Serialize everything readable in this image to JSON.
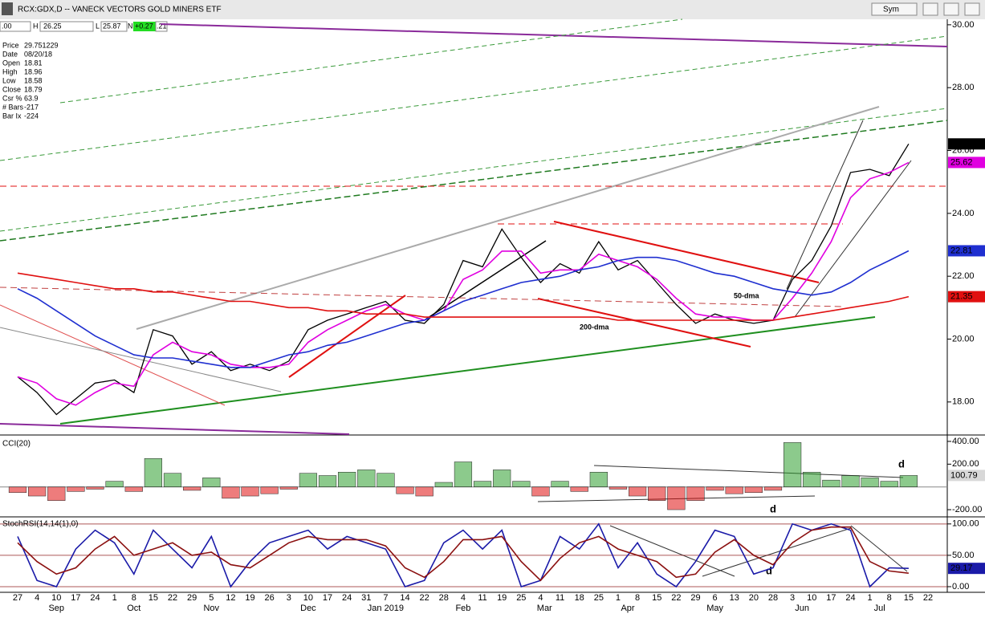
{
  "window": {
    "title": "RCX:GDX,D -- VANECK VECTORS GOLD MINERS ETF",
    "sym_button": "Sym",
    "fields": [
      ".00",
      "H",
      "26.25",
      "L",
      "25.87",
      "N",
      "+0.27",
      ".21"
    ]
  },
  "info": {
    "rows": [
      [
        "Price",
        "29.751229"
      ],
      [
        "Date",
        "08/20/18"
      ],
      [
        "Open",
        "18.81"
      ],
      [
        "High",
        "18.96"
      ],
      [
        "Low",
        "18.58"
      ],
      [
        "Close",
        "18.79"
      ],
      [
        "Csr %",
        "63.9"
      ],
      [
        "# Bars",
        "-217"
      ],
      [
        "Bar Ix",
        "-224"
      ]
    ]
  },
  "annotations": [
    "200-dma",
    "50-dma",
    "d",
    "d",
    "d"
  ],
  "chart_data": [
    {
      "type": "line",
      "ylim": [
        17.0,
        30.15
      ],
      "yticks": [
        {
          "value": 18,
          "label": "18.00"
        },
        {
          "value": 20,
          "label": "20.00"
        },
        {
          "value": 22,
          "label": "22.00"
        },
        {
          "value": 24,
          "label": "24.00"
        },
        {
          "value": 26,
          "label": "26.00"
        },
        {
          "value": 28,
          "label": "28.00"
        },
        {
          "value": 30,
          "label": "30.00"
        }
      ],
      "grid": false,
      "series": [
        {
          "color": "#000000",
          "last_value_tag": true,
          "values": [
            18.8,
            18.3,
            17.6,
            18.1,
            18.6,
            18.7,
            18.3,
            20.3,
            20.1,
            19.2,
            19.6,
            19.0,
            19.2,
            19.0,
            19.3,
            20.3,
            20.6,
            20.8,
            21.0,
            21.2,
            20.6,
            20.5,
            21.1,
            22.5,
            22.3,
            23.5,
            22.6,
            21.8,
            22.4,
            22.1,
            23.1,
            22.2,
            22.5,
            21.8,
            21.1,
            20.5,
            20.8,
            20.6,
            20.5,
            20.6,
            21.9,
            22.5,
            23.6,
            25.3,
            25.4,
            25.2,
            26.21,
            null
          ]
        },
        {
          "color": "#e000e0",
          "last_value_tag": true,
          "values": [
            18.8,
            18.6,
            18.1,
            17.9,
            18.3,
            18.6,
            18.5,
            19.5,
            19.9,
            19.6,
            19.5,
            19.2,
            19.1,
            19.1,
            19.2,
            19.9,
            20.3,
            20.6,
            20.9,
            21.1,
            20.8,
            20.6,
            20.9,
            21.9,
            22.2,
            22.8,
            22.8,
            22.1,
            22.2,
            22.2,
            22.7,
            22.5,
            22.3,
            21.9,
            21.3,
            20.8,
            20.7,
            20.7,
            20.6,
            20.6,
            21.3,
            22.1,
            23.1,
            24.5,
            25.1,
            25.3,
            25.62,
            null
          ]
        },
        {
          "color": "#1f2fd0",
          "last_value_tag": true,
          "values": [
            21.6,
            21.3,
            20.9,
            20.5,
            20.1,
            19.8,
            19.5,
            19.4,
            19.4,
            19.3,
            19.2,
            19.1,
            19.1,
            19.3,
            19.5,
            19.6,
            19.8,
            19.9,
            20.1,
            20.3,
            20.5,
            20.6,
            20.9,
            21.2,
            21.4,
            21.6,
            21.8,
            21.9,
            22.0,
            22.2,
            22.3,
            22.5,
            22.6,
            22.6,
            22.5,
            22.3,
            22.1,
            22.0,
            21.8,
            21.6,
            21.5,
            21.4,
            21.5,
            21.8,
            22.2,
            22.5,
            22.81,
            null
          ]
        },
        {
          "color": "#e01010",
          "last_value_tag": true,
          "values": [
            22.1,
            22.0,
            21.9,
            21.8,
            21.7,
            21.6,
            21.6,
            21.5,
            21.5,
            21.4,
            21.3,
            21.2,
            21.2,
            21.1,
            21.0,
            21.0,
            20.9,
            20.9,
            20.8,
            20.8,
            20.8,
            20.7,
            20.7,
            20.7,
            20.7,
            20.7,
            20.7,
            20.7,
            20.7,
            20.7,
            20.7,
            20.6,
            20.6,
            20.6,
            20.6,
            20.6,
            20.6,
            20.6,
            20.6,
            20.6,
            20.7,
            20.8,
            20.9,
            21.0,
            21.1,
            21.2,
            21.35,
            null
          ]
        }
      ]
    },
    {
      "type": "bar",
      "title": "CCI(20)",
      "ylim": [
        -249,
        435
      ],
      "yticks": [
        {
          "value": -200,
          "label": "-200.00"
        },
        {
          "value": 200,
          "label": "200.00"
        },
        {
          "value": 400,
          "label": "400.00"
        }
      ],
      "up_color": "#2e9e2e",
      "down_color": "#e01010",
      "tag_color": "#d8d8d8",
      "values": [
        -50,
        -80,
        -120,
        -40,
        -20,
        50,
        -40,
        250,
        120,
        -30,
        80,
        -100,
        -80,
        -60,
        -20,
        120,
        100,
        130,
        150,
        120,
        -60,
        -80,
        40,
        220,
        50,
        150,
        50,
        -80,
        50,
        -40,
        130,
        -20,
        -80,
        -120,
        -200,
        -120,
        -30,
        -60,
        -50,
        -30,
        390,
        130,
        60,
        100,
        80,
        50,
        100.79,
        null
      ]
    },
    {
      "type": "line",
      "title": "StochRSI(14,14(1),0)",
      "ylim": [
        -7.7,
        110
      ],
      "yticks": [
        {
          "value": 0,
          "label": "0.00"
        },
        {
          "value": 50,
          "label": "50.00"
        },
        {
          "value": 100,
          "label": "100.00"
        }
      ],
      "grid": true,
      "categories": [
        "27",
        "4",
        "10",
        "17",
        "24",
        "1",
        "8",
        "15",
        "22",
        "29",
        "5",
        "12",
        "19",
        "26",
        "3",
        "10",
        "17",
        "24",
        "31",
        "7",
        "14",
        "22",
        "28",
        "4",
        "11",
        "19",
        "25",
        "4",
        "11",
        "18",
        "25",
        "1",
        "8",
        "15",
        "22",
        "29",
        "6",
        "13",
        "20",
        "28",
        "3",
        "10",
        "17",
        "24",
        "1",
        "8",
        "15",
        "22"
      ],
      "month_labels": [
        "Sep",
        "Oct",
        "Nov",
        "Dec",
        "Jan 2019",
        "Feb",
        "Mar",
        "Apr",
        "May",
        "Jun",
        "Jul"
      ],
      "series": [
        {
          "color": "#1a1aa8",
          "last_value_tag": true,
          "values": [
            80,
            10,
            0,
            60,
            90,
            70,
            20,
            90,
            60,
            30,
            80,
            0,
            40,
            70,
            80,
            90,
            60,
            80,
            70,
            60,
            0,
            10,
            70,
            90,
            60,
            90,
            0,
            10,
            80,
            60,
            100,
            30,
            70,
            20,
            0,
            40,
            90,
            80,
            20,
            30,
            100,
            90,
            100,
            90,
            0,
            30,
            29.17,
            null
          ]
        },
        {
          "color": "#8b1010",
          "last_value_tag": false,
          "values": [
            70,
            40,
            20,
            30,
            60,
            80,
            50,
            60,
            70,
            50,
            55,
            35,
            30,
            50,
            70,
            80,
            75,
            75,
            75,
            65,
            30,
            15,
            40,
            75,
            75,
            80,
            40,
            10,
            45,
            70,
            80,
            60,
            50,
            40,
            15,
            20,
            55,
            75,
            50,
            35,
            70,
            90,
            95,
            95,
            40,
            25,
            21.53,
            null
          ]
        }
      ]
    }
  ]
}
